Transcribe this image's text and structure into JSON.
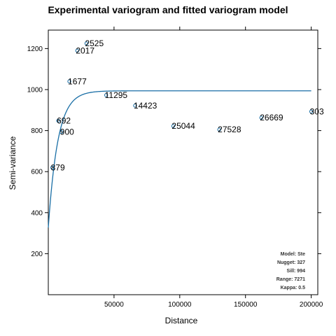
{
  "chart_data": {
    "type": "scatter",
    "title": "Experimental variogram and fitted variogram model",
    "xlabel": "Distance",
    "ylabel": "Semi-variance",
    "xlim": [
      0,
      205000
    ],
    "ylim": [
      0,
      1290
    ],
    "xticks": [
      50000,
      100000,
      150000,
      200000
    ],
    "yticks": [
      200,
      400,
      600,
      800,
      1000,
      1200
    ],
    "grid": false,
    "colors": {
      "points": "#1a6fa6",
      "curve": "#1a6fa6"
    },
    "points": [
      {
        "x": 3000,
        "y": 620,
        "label": "879"
      },
      {
        "x": 7500,
        "y": 848,
        "label": "692"
      },
      {
        "x": 10000,
        "y": 793,
        "label": "900"
      },
      {
        "x": 16000,
        "y": 1040,
        "label": "1677"
      },
      {
        "x": 22000,
        "y": 1190,
        "label": "2017"
      },
      {
        "x": 29000,
        "y": 1225,
        "label": "2525"
      },
      {
        "x": 44000,
        "y": 973,
        "label": "11295"
      },
      {
        "x": 66000,
        "y": 922,
        "label": "14423"
      },
      {
        "x": 95000,
        "y": 822,
        "label": "25044"
      },
      {
        "x": 130000,
        "y": 805,
        "label": "27528"
      },
      {
        "x": 162000,
        "y": 863,
        "label": "26669"
      },
      {
        "x": 200000,
        "y": 893,
        "label": "303"
      }
    ],
    "model": {
      "nugget": 327,
      "sill": 994,
      "range": 7271,
      "kappa": 0.5
    },
    "info_lines": [
      "Model: Ste",
      "Nugget: 327",
      "Sill: 994",
      "Range: 7271",
      "Kappa: 0.5"
    ]
  }
}
